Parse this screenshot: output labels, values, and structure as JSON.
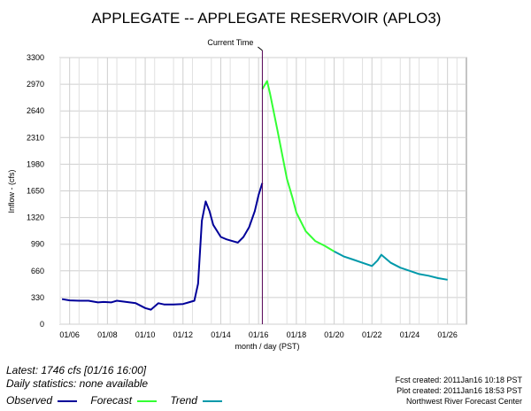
{
  "chart_data": {
    "type": "line",
    "title": "APPLEGATE -- APPLEGATE RESERVOIR  (APLO3)",
    "xlabel": "month / day (PST)",
    "ylabel": "Inflow - (cfs)",
    "ylim": [
      0,
      3300
    ],
    "yticks": [
      "0",
      "330",
      "660",
      "990",
      "1320",
      "1650",
      "1980",
      "2310",
      "2640",
      "2970",
      "3300"
    ],
    "xlim": [
      5.5,
      27.0
    ],
    "xticks": [
      {
        "x": 6,
        "label": "01/06"
      },
      {
        "x": 8,
        "label": "01/08"
      },
      {
        "x": 10,
        "label": "01/10"
      },
      {
        "x": 12,
        "label": "01/12"
      },
      {
        "x": 14,
        "label": "01/14"
      },
      {
        "x": 16,
        "label": "01/16"
      },
      {
        "x": 18,
        "label": "01/18"
      },
      {
        "x": 20,
        "label": "01/20"
      },
      {
        "x": 22,
        "label": "01/22"
      },
      {
        "x": 24,
        "label": "01/24"
      },
      {
        "x": 26,
        "label": "01/26"
      }
    ],
    "grid": true,
    "current_time": {
      "label": "Current Time",
      "x": 16.2
    },
    "series": [
      {
        "name": "Observed",
        "color": "#000099",
        "x": [
          5.6,
          6.0,
          6.5,
          7.0,
          7.5,
          7.8,
          8.2,
          8.5,
          9.0,
          9.5,
          10.0,
          10.3,
          10.7,
          11.0,
          11.5,
          12.0,
          12.3,
          12.6,
          12.8,
          13.0,
          13.2,
          13.4,
          13.6,
          14.0,
          14.3,
          14.6,
          14.9,
          15.2,
          15.5,
          15.8,
          16.0,
          16.2
        ],
        "y": [
          310,
          295,
          290,
          290,
          270,
          275,
          270,
          290,
          275,
          260,
          200,
          180,
          260,
          245,
          245,
          250,
          270,
          290,
          500,
          1280,
          1520,
          1400,
          1230,
          1080,
          1050,
          1030,
          1010,
          1080,
          1200,
          1400,
          1600,
          1746
        ]
      },
      {
        "name": "Forecast",
        "color": "#33ff33",
        "x": [
          16.2,
          16.45,
          16.6,
          17.0,
          17.5,
          17.8,
          18.0,
          18.5,
          19.0,
          19.5,
          20.0
        ],
        "y": [
          2910,
          3010,
          2860,
          2400,
          1800,
          1560,
          1380,
          1150,
          1030,
          970,
          900
        ]
      },
      {
        "name": "Trend",
        "color": "#0099aa",
        "x": [
          20.0,
          20.5,
          21.0,
          21.5,
          22.0,
          22.3,
          22.5,
          23.0,
          23.5,
          24.0,
          24.5,
          25.0,
          25.5,
          26.0
        ],
        "y": [
          900,
          840,
          800,
          760,
          720,
          790,
          860,
          760,
          700,
          660,
          620,
          600,
          570,
          550
        ]
      }
    ]
  },
  "latest": "Latest: 1746 cfs [01/16 16:00]",
  "daily_stats": "Daily statistics: none available",
  "legend": {
    "observed": "Observed",
    "forecast": "Forecast",
    "trend": "Trend"
  },
  "credits": {
    "fcst": "Fcst created: 2011Jan16 10:18 PST",
    "plot": "Plot created: 2011Jan16 18:53 PST",
    "center": "Northwest River Forecast Center"
  }
}
